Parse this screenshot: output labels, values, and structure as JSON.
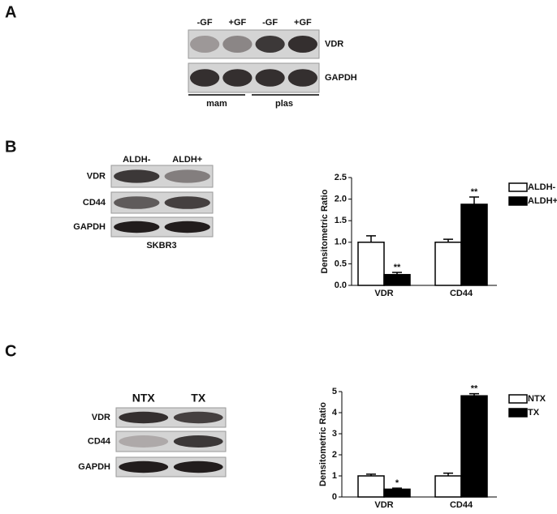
{
  "panel_a": {
    "label": "A",
    "lanes": [
      "-GF",
      "+GF",
      "-GF",
      "+GF"
    ],
    "rows": [
      "VDR",
      "GAPDH"
    ],
    "groups": [
      "mam",
      "plas"
    ]
  },
  "panel_b": {
    "label": "B",
    "lanes": [
      "ALDH-",
      "ALDH+"
    ],
    "rows": [
      "VDR",
      "CD44",
      "GAPDH"
    ],
    "cell_line": "SKBR3"
  },
  "panel_c": {
    "label": "C",
    "lanes": [
      "NTX",
      "TX"
    ],
    "rows": [
      "VDR",
      "CD44",
      "GAPDH"
    ]
  },
  "chart_data": [
    {
      "type": "bar",
      "y_label": "Densitometric Ratio",
      "categories": [
        "VDR",
        "CD44"
      ],
      "series": [
        {
          "name": "ALDH-",
          "color": "#ffffff",
          "values": [
            1.0,
            1.0
          ],
          "errors": [
            0.15,
            0.07
          ]
        },
        {
          "name": "ALDH+",
          "color": "#000000",
          "values": [
            0.25,
            1.88
          ],
          "errors": [
            0.05,
            0.17
          ],
          "annotations": [
            "**",
            "**"
          ]
        }
      ],
      "ylim": [
        0,
        2.5
      ],
      "yticks": [
        {
          "value": 0,
          "label": "0.0"
        },
        {
          "value": 0.5,
          "label": "0.5"
        },
        {
          "value": 1,
          "label": "1.0"
        },
        {
          "value": 1.5,
          "label": "1.5"
        },
        {
          "value": 2,
          "label": "2.0"
        },
        {
          "value": 2.5,
          "label": "2.5"
        }
      ],
      "legend": "upper right outside"
    },
    {
      "type": "bar",
      "y_label": "Densitometric Ratio",
      "categories": [
        "VDR",
        "CD44"
      ],
      "series": [
        {
          "name": "NTX",
          "color": "#ffffff",
          "values": [
            1.0,
            1.0
          ],
          "errors": [
            0.08,
            0.13
          ]
        },
        {
          "name": "TX",
          "color": "#000000",
          "values": [
            0.37,
            4.8
          ],
          "errors": [
            0.05,
            0.1
          ],
          "annotations": [
            "*",
            "**"
          ]
        }
      ],
      "ylim": [
        0,
        5
      ],
      "yticks": [
        0,
        1,
        2,
        3,
        4,
        5
      ],
      "legend": "upper right outside"
    }
  ]
}
